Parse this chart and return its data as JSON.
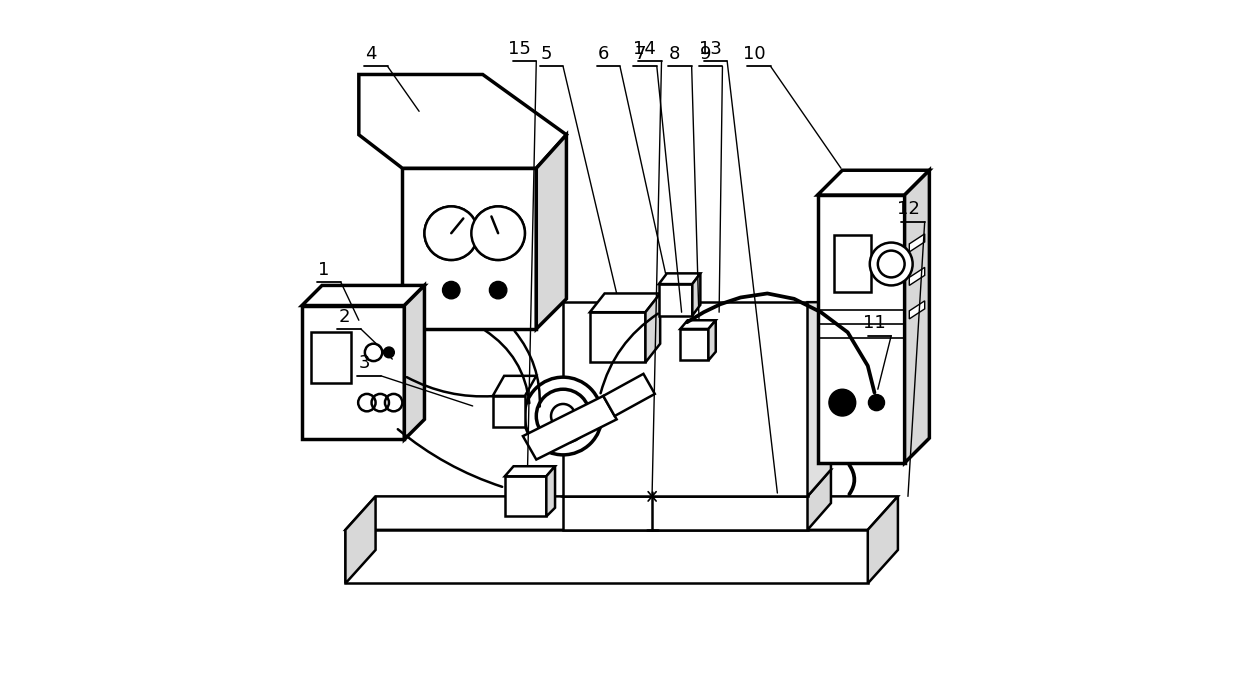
{
  "bg_color": "#ffffff",
  "line_color": "#000000",
  "line_width": 1.8,
  "label_fontsize": 13
}
